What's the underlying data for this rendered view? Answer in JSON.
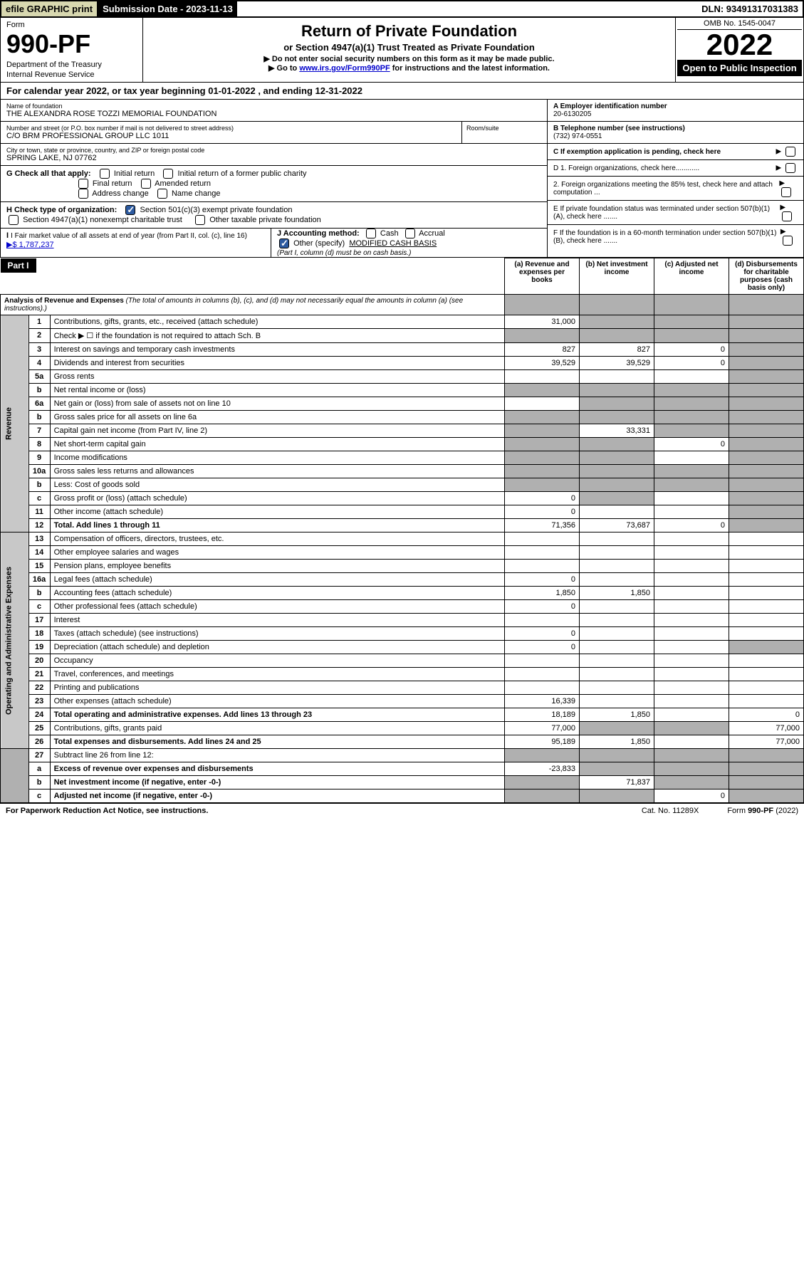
{
  "topbar": {
    "efile": "efile GRAPHIC print",
    "submission": "Submission Date - 2023-11-13",
    "dln": "DLN: 93491317031383"
  },
  "header": {
    "form_label": "Form",
    "form_num": "990-PF",
    "dept1": "Department of the Treasury",
    "dept2": "Internal Revenue Service",
    "title": "Return of Private Foundation",
    "subtitle": "or Section 4947(a)(1) Trust Treated as Private Foundation",
    "note1": "▶ Do not enter social security numbers on this form as it may be made public.",
    "note2_pre": "▶ Go to ",
    "note2_link": "www.irs.gov/Form990PF",
    "note2_post": " for instructions and the latest information.",
    "omb": "OMB No. 1545-0047",
    "year": "2022",
    "open": "Open to Public Inspection"
  },
  "cal_year": "For calendar year 2022, or tax year beginning 01-01-2022             , and ending 12-31-2022",
  "info": {
    "name_label": "Name of foundation",
    "name": "THE ALEXANDRA ROSE TOZZI MEMORIAL FOUNDATION",
    "addr_label": "Number and street (or P.O. box number if mail is not delivered to street address)",
    "addr": "C/O BRM PROFESSIONAL GROUP LLC 1011",
    "room_label": "Room/suite",
    "city_label": "City or town, state or province, country, and ZIP or foreign postal code",
    "city": "SPRING LAKE, NJ  07762",
    "ein_label": "A Employer identification number",
    "ein": "20-6130205",
    "phone_label": "B Telephone number (see instructions)",
    "phone": "(732) 974-0551",
    "c_label": "C If exemption application is pending, check here",
    "d1": "D 1. Foreign organizations, check here............",
    "d2": "2. Foreign organizations meeting the 85% test, check here and attach computation ...",
    "e_label": "E  If private foundation status was terminated under section 507(b)(1)(A), check here .......",
    "f_label": "F  If the foundation is in a 60-month termination under section 507(b)(1)(B), check here .......",
    "g_label": "G Check all that apply:",
    "g_initial": "Initial return",
    "g_initial_former": "Initial return of a former public charity",
    "g_final": "Final return",
    "g_amended": "Amended return",
    "g_address": "Address change",
    "g_name": "Name change",
    "h_label": "H Check type of organization:",
    "h_501c3": "Section 501(c)(3) exempt private foundation",
    "h_4947": "Section 4947(a)(1) nonexempt charitable trust",
    "h_other": "Other taxable private foundation",
    "i_label": "I Fair market value of all assets at end of year (from Part II, col. (c), line 16)",
    "i_val": "▶$  1,787,237",
    "j_label": "J Accounting method:",
    "j_cash": "Cash",
    "j_accrual": "Accrual",
    "j_other": "Other (specify)",
    "j_other_val": "MODIFIED CASH BASIS",
    "j_note": "(Part I, column (d) must be on cash basis.)"
  },
  "part1": {
    "label": "Part I",
    "title": "Analysis of Revenue and Expenses",
    "title_note": "(The total of amounts in columns (b), (c), and (d) may not necessarily equal the amounts in column (a) (see instructions).)",
    "col_a": "(a)    Revenue and expenses per books",
    "col_b": "(b)    Net investment income",
    "col_c": "(c)    Adjusted net income",
    "col_d": "(d)    Disbursements for charitable purposes (cash basis only)"
  },
  "sections": {
    "revenue": "Revenue",
    "expenses": "Operating and Administrative Expenses"
  },
  "lines": [
    {
      "n": "1",
      "d": "Contributions, gifts, grants, etc., received (attach schedule)",
      "a": "31,000",
      "b_sh": true,
      "c_sh": true,
      "d_sh": true
    },
    {
      "n": "2",
      "d": "Check ▶ ☐ if the foundation is not required to attach Sch. B",
      "a_sh": true,
      "b_sh": true,
      "c_sh": true,
      "d_sh": true
    },
    {
      "n": "3",
      "d": "Interest on savings and temporary cash investments",
      "a": "827",
      "b": "827",
      "c": "0",
      "d_sh": true
    },
    {
      "n": "4",
      "d": "Dividends and interest from securities",
      "a": "39,529",
      "b": "39,529",
      "c": "0",
      "d_sh": true
    },
    {
      "n": "5a",
      "d": "Gross rents",
      "d_sh": true
    },
    {
      "n": "b",
      "d": "Net rental income or (loss)",
      "a_sh": true,
      "b_sh": true,
      "c_sh": true,
      "d_sh": true
    },
    {
      "n": "6a",
      "d": "Net gain or (loss) from sale of assets not on line 10",
      "b_sh": true,
      "c_sh": true,
      "d_sh": true
    },
    {
      "n": "b",
      "d": "Gross sales price for all assets on line 6a",
      "a_sh": true,
      "b_sh": true,
      "c_sh": true,
      "d_sh": true
    },
    {
      "n": "7",
      "d": "Capital gain net income (from Part IV, line 2)",
      "a_sh": true,
      "b": "33,331",
      "c_sh": true,
      "d_sh": true
    },
    {
      "n": "8",
      "d": "Net short-term capital gain",
      "a_sh": true,
      "b_sh": true,
      "c": "0",
      "d_sh": true
    },
    {
      "n": "9",
      "d": "Income modifications",
      "a_sh": true,
      "b_sh": true,
      "d_sh": true
    },
    {
      "n": "10a",
      "d": "Gross sales less returns and allowances",
      "a_sh": true,
      "b_sh": true,
      "c_sh": true,
      "d_sh": true
    },
    {
      "n": "b",
      "d": "Less: Cost of goods sold",
      "a_sh": true,
      "b_sh": true,
      "c_sh": true,
      "d_sh": true
    },
    {
      "n": "c",
      "d": "Gross profit or (loss) (attach schedule)",
      "a": "0",
      "b_sh": true,
      "d_sh": true
    },
    {
      "n": "11",
      "d": "Other income (attach schedule)",
      "a": "0",
      "d_sh": true
    },
    {
      "n": "12",
      "d": "Total. Add lines 1 through 11",
      "a": "71,356",
      "b": "73,687",
      "c": "0",
      "d_sh": true,
      "bold": true
    }
  ],
  "exp_lines": [
    {
      "n": "13",
      "d": "Compensation of officers, directors, trustees, etc."
    },
    {
      "n": "14",
      "d": "Other employee salaries and wages"
    },
    {
      "n": "15",
      "d": "Pension plans, employee benefits"
    },
    {
      "n": "16a",
      "d": "Legal fees (attach schedule)",
      "a": "0"
    },
    {
      "n": "b",
      "d": "Accounting fees (attach schedule)",
      "a": "1,850",
      "b": "1,850"
    },
    {
      "n": "c",
      "d": "Other professional fees (attach schedule)",
      "a": "0"
    },
    {
      "n": "17",
      "d": "Interest"
    },
    {
      "n": "18",
      "d": "Taxes (attach schedule) (see instructions)",
      "a": "0"
    },
    {
      "n": "19",
      "d": "Depreciation (attach schedule) and depletion",
      "a": "0",
      "d_sh": true
    },
    {
      "n": "20",
      "d": "Occupancy"
    },
    {
      "n": "21",
      "d": "Travel, conferences, and meetings"
    },
    {
      "n": "22",
      "d": "Printing and publications"
    },
    {
      "n": "23",
      "d": "Other expenses (attach schedule)",
      "a": "16,339"
    },
    {
      "n": "24",
      "d": "Total operating and administrative expenses. Add lines 13 through 23",
      "a": "18,189",
      "b": "1,850",
      "c": "",
      "dd": "0",
      "bold": true
    },
    {
      "n": "25",
      "d": "Contributions, gifts, grants paid",
      "a": "77,000",
      "b_sh": true,
      "c_sh": true,
      "dd": "77,000"
    },
    {
      "n": "26",
      "d": "Total expenses and disbursements. Add lines 24 and 25",
      "a": "95,189",
      "b": "1,850",
      "c": "",
      "dd": "77,000",
      "bold": true
    }
  ],
  "bottom_lines": [
    {
      "n": "27",
      "d": "Subtract line 26 from line 12:",
      "a_sh": true,
      "b_sh": true,
      "c_sh": true,
      "d_sh": true
    },
    {
      "n": "a",
      "d": "Excess of revenue over expenses and disbursements",
      "a": "-23,833",
      "b_sh": true,
      "c_sh": true,
      "d_sh": true,
      "bold": true
    },
    {
      "n": "b",
      "d": "Net investment income (if negative, enter -0-)",
      "a_sh": true,
      "b": "71,837",
      "c_sh": true,
      "d_sh": true,
      "bold": true
    },
    {
      "n": "c",
      "d": "Adjusted net income (if negative, enter -0-)",
      "a_sh": true,
      "b_sh": true,
      "c": "0",
      "d_sh": true,
      "bold": true
    }
  ],
  "footer": {
    "left": "For Paperwork Reduction Act Notice, see instructions.",
    "mid": "Cat. No. 11289X",
    "right": "Form 990-PF (2022)"
  }
}
